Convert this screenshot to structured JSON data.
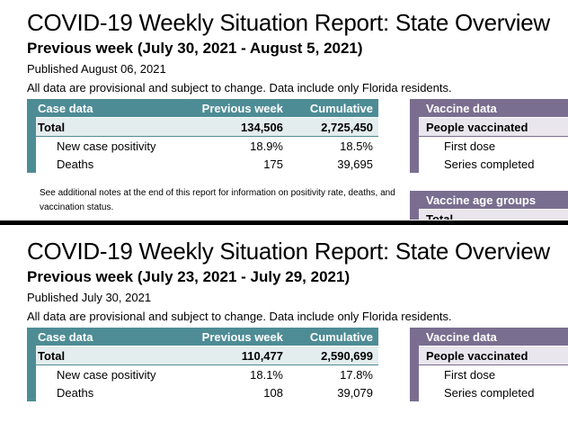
{
  "reports": [
    {
      "title": "COVID-19 Weekly Situation Report: State Overview",
      "week": "Previous week (July 30, 2021 - August 5, 2021)",
      "published": "Published August 06, 2021",
      "disclaimer": "All data are provisional and subject to change. Data include only Florida residents.",
      "case_table": {
        "headers": [
          "Case data",
          "Previous week",
          "Cumulative"
        ],
        "rows": [
          {
            "label": "Total",
            "previous_week": "134,506",
            "cumulative": "2,725,450"
          },
          {
            "label": "New case positivity",
            "previous_week": "18.9%",
            "cumulative": "18.5%"
          },
          {
            "label": "Deaths",
            "previous_week": "175",
            "cumulative": "39,695"
          }
        ]
      },
      "vaccine_table": {
        "header": "Vaccine data",
        "rows": [
          "People vaccinated",
          "First dose",
          "Series completed"
        ]
      },
      "notes": "See additional notes at the end of this report for information on positivity rate, deaths, and vaccination status.",
      "age_table": {
        "header": "Vaccine age groups",
        "rows": [
          "Total"
        ]
      }
    },
    {
      "title": "COVID-19 Weekly Situation Report: State Overview",
      "week": "Previous week (July 23, 2021 - July 29, 2021)",
      "published": "Published July 30, 2021",
      "disclaimer": "All data are provisional and subject to change. Data include only Florida residents.",
      "case_table": {
        "headers": [
          "Case data",
          "Previous week",
          "Cumulative"
        ],
        "rows": [
          {
            "label": "Total",
            "previous_week": "110,477",
            "cumulative": "2,590,699"
          },
          {
            "label": "New case positivity",
            "previous_week": "18.1%",
            "cumulative": "17.8%"
          },
          {
            "label": "Deaths",
            "previous_week": "108",
            "cumulative": "39,079"
          }
        ]
      },
      "vaccine_table": {
        "header": "Vaccine data",
        "rows": [
          "People vaccinated",
          "First dose",
          "Series completed"
        ]
      }
    }
  ],
  "colors": {
    "case_header": "#4e8c95",
    "vaccine_header": "#7a6e90",
    "divider": "#000000"
  }
}
